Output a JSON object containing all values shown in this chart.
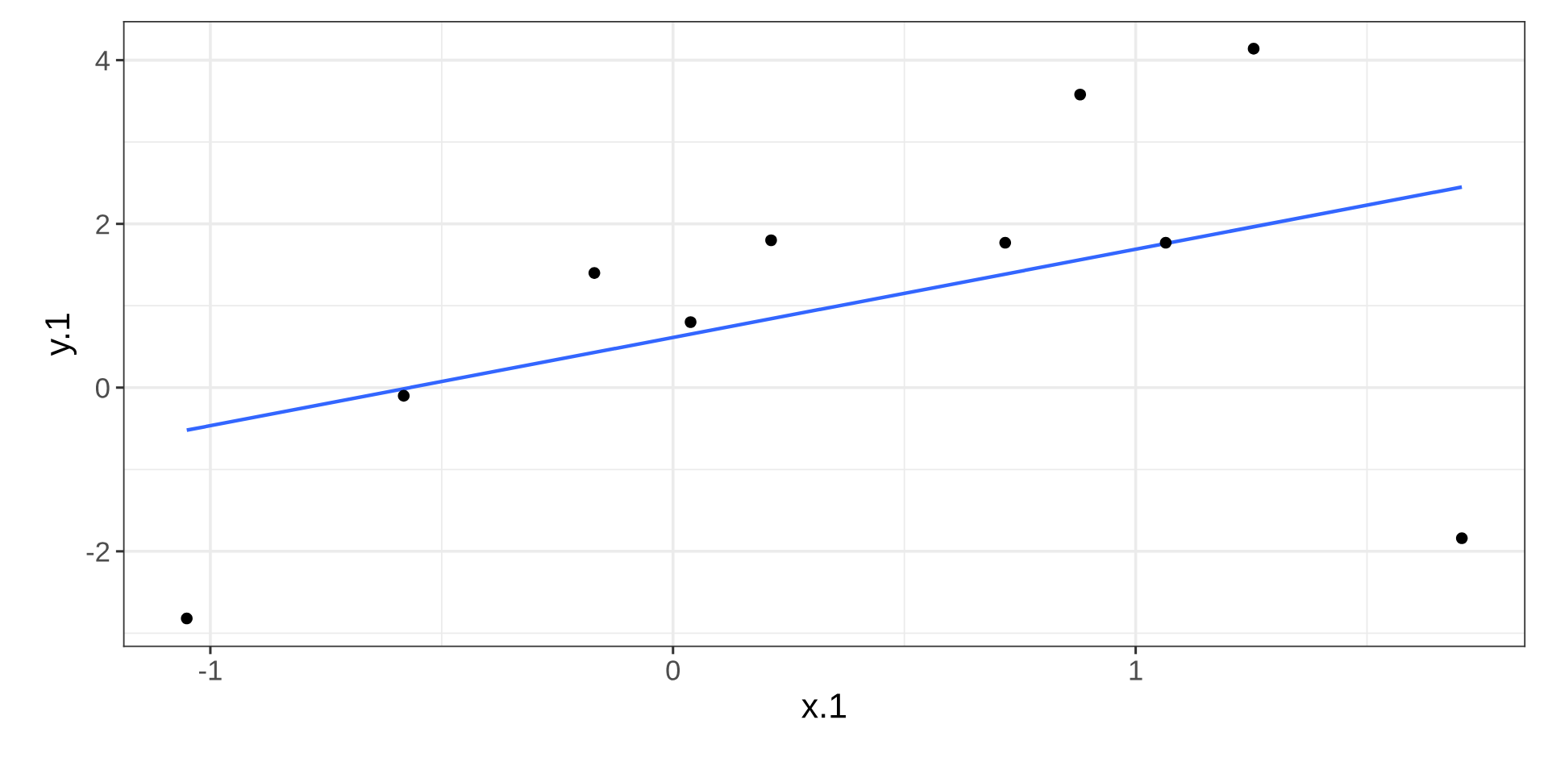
{
  "chart_data": {
    "type": "scatter",
    "xlabel": "x.1",
    "ylabel": "y.1",
    "xlim": [
      -1.187,
      1.841
    ],
    "ylim": [
      -3.16,
      4.47
    ],
    "xticks": [
      {
        "value": -1,
        "label": "-1"
      },
      0,
      1
    ],
    "yticks": [
      {
        "value": -2,
        "label": "-2"
      },
      0,
      2,
      4
    ],
    "grid": true,
    "legend": false,
    "series": [
      {
        "color": "#000000",
        "marker": "circle",
        "x": [
          -1.051,
          -0.582,
          -0.17,
          0.038,
          0.212,
          0.718,
          0.88,
          1.065,
          1.255,
          1.705
        ],
        "values": [
          -2.82,
          -0.1,
          1.4,
          0.8,
          1.8,
          1.77,
          3.58,
          1.77,
          4.14,
          -1.84
        ]
      },
      {
        "type": "line",
        "color": "#3366ff",
        "line_style": "solid",
        "x": [
          -1.051,
          1.705
        ],
        "values": [
          -0.52,
          2.45
        ]
      }
    ]
  }
}
